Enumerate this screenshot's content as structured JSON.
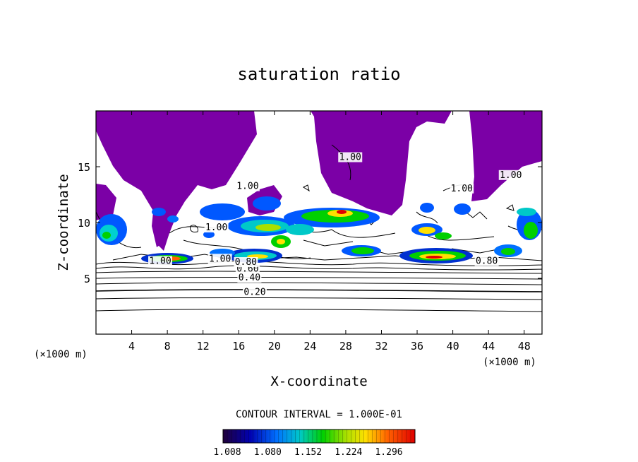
{
  "chart_data": {
    "type": "heatmap",
    "title": "saturation ratio",
    "xlabel": "X-coordinate",
    "ylabel": "Z-coordinate",
    "x_unit": "(×1000 m)",
    "x_unit_right": "(×1000 m)",
    "xlim": [
      0,
      50
    ],
    "ylim": [
      0,
      20
    ],
    "x_ticks": [
      4,
      8,
      12,
      16,
      20,
      24,
      28,
      32,
      36,
      40,
      44,
      48
    ],
    "y_ticks": [
      5,
      10,
      15
    ],
    "contour_interval_text": "CONTOUR INTERVAL = 1.000E-01",
    "colorbar": {
      "range": [
        1.008,
        1.35
      ],
      "tick_labels": [
        "1.008",
        "1.080",
        "1.152",
        "1.224",
        "1.296"
      ],
      "saturated_color": "#7b00a6"
    },
    "contour_labels": [
      {
        "text": "0.20",
        "x": 17.8,
        "y": 3.5
      },
      {
        "text": "0.40",
        "x": 17.2,
        "y": 4.8
      },
      {
        "text": "0.60",
        "x": 17.0,
        "y": 5.6
      },
      {
        "text": "0.80",
        "x": 16.8,
        "y": 6.2
      },
      {
        "text": "1.00",
        "x": 7.2,
        "y": 6.3
      },
      {
        "text": "1.00",
        "x": 13.9,
        "y": 6.5
      },
      {
        "text": "0.80",
        "x": 43.8,
        "y": 6.3
      },
      {
        "text": "1.00",
        "x": 13.5,
        "y": 9.3
      },
      {
        "text": "1.00",
        "x": 17.0,
        "y": 13.0
      },
      {
        "text": "1.00",
        "x": 28.5,
        "y": 15.6
      },
      {
        "text": "1.00",
        "x": 41.0,
        "y": 12.8
      },
      {
        "text": "1.00",
        "x": 46.5,
        "y": 14.0
      }
    ]
  }
}
